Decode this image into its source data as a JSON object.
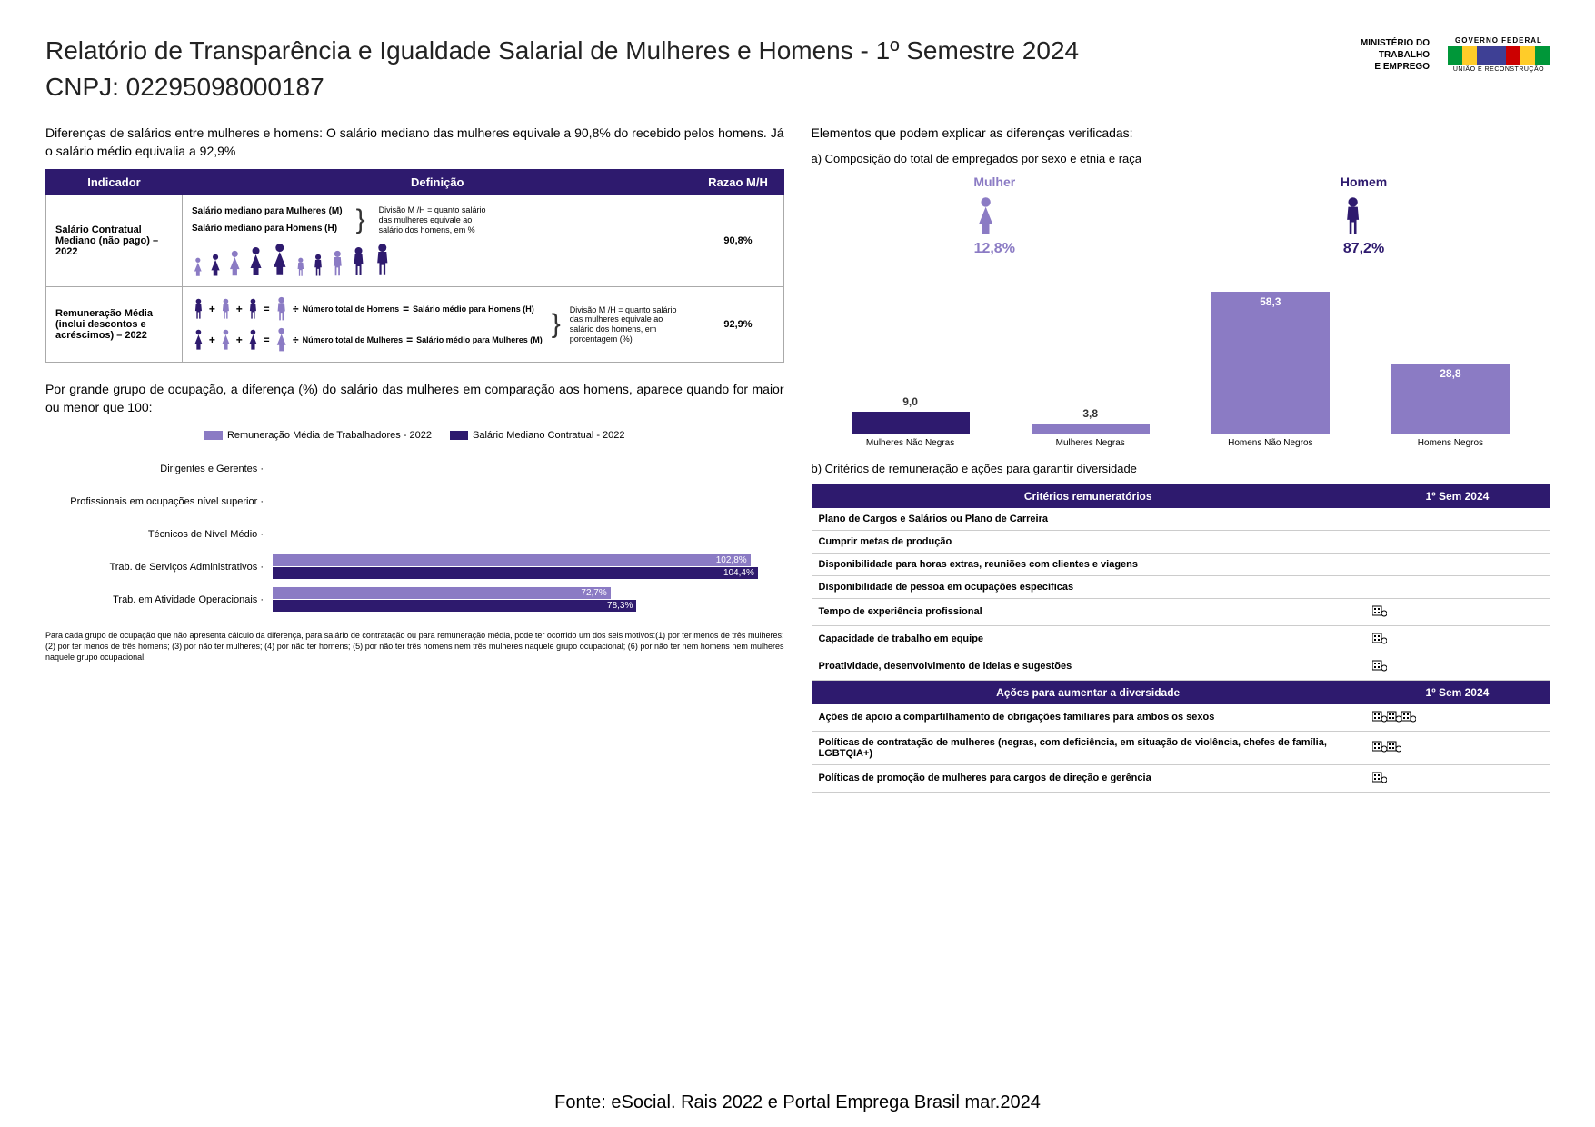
{
  "colors": {
    "darkPurple": "#2e1a6e",
    "lightPurple": "#8b7bc4",
    "text": "#000000",
    "green": "#009739",
    "yellow": "#ffcc29",
    "blue": "#3e4095",
    "red": "#cc0000"
  },
  "header": {
    "title": "Relatório de Transparência e Igualdade Salarial de Mulheres e Homens - 1º Semestre 2024",
    "cnpj": "CNPJ: 02295098000187",
    "ministry_line1": "MINISTÉRIO DO",
    "ministry_line2": "TRABALHO",
    "ministry_line3": "E EMPREGO",
    "brasil_top": "GOVERNO FEDERAL",
    "brasil_bottom": "UNIÃO E RECONSTRUÇÃO"
  },
  "left": {
    "intro": "Diferenças de salários entre mulheres e homens: O salário mediano das mulheres equivale a 90,8% do recebido pelos homens. Já o salário médio equivalia a 92,9%",
    "table_headers": [
      "Indicador",
      "Definição",
      "Razao M/H"
    ],
    "rows": [
      {
        "indicator": "Salário Contratual Mediano (não pago) – 2022",
        "def_line1": "Salário mediano para Mulheres (M)",
        "def_line2": "Salário mediano para Homens (H)",
        "def_note": "Divisão M /H = quanto salário das mulheres equivale ao salário dos homens, em %",
        "ratio": "90,8%"
      },
      {
        "indicator": "Remuneração Média (inclui descontos e acréscimos) – 2022",
        "def_line_a": "Número total de Homens",
        "def_line_b": "Salário médio para Homens (H)",
        "def_line_c": "Número total de Mulheres",
        "def_line_d": "Salário médio para Mulheres (M)",
        "def_note": "Divisão M /H = quanto salário das mulheres equivale ao salário dos homens, em porcentagem (%)",
        "ratio": "92,9%"
      }
    ],
    "hbar_intro": "Por grande grupo de ocupação, a diferença (%) do salário das mulheres em comparação aos homens, aparece quando for maior ou menor que 100:",
    "hbar_legend": [
      {
        "label": "Remuneração Média de Trabalhadores - 2022",
        "color": "#8b7bc4"
      },
      {
        "label": "Salário Mediano Contratual - 2022",
        "color": "#2e1a6e"
      }
    ],
    "hbar_categories": [
      {
        "label": "Dirigentes e Gerentes",
        "vals": [
          null,
          null
        ]
      },
      {
        "label": "Profissionais em ocupações nível superior",
        "vals": [
          null,
          null
        ]
      },
      {
        "label": "Técnicos de Nível Médio",
        "vals": [
          null,
          null
        ]
      },
      {
        "label": "Trab. de Serviços Administrativos",
        "vals": [
          102.8,
          104.4
        ],
        "labels": [
          "102,8%",
          "104,4%"
        ]
      },
      {
        "label": "Trab. em Atividade Operacionais",
        "vals": [
          72.7,
          78.3
        ],
        "labels": [
          "72,7%",
          "78,3%"
        ]
      }
    ],
    "hbar_max": 110,
    "footnote": "Para cada grupo de ocupação que não apresenta cálculo da diferença, para salário de contratação ou para remuneração média, pode ter ocorrido um dos seis motivos:(1) por ter menos de três mulheres; (2) por ter menos de três homens; (3) por não ter mulheres; (4) por não ter homens; (5) por não ter três homens nem três mulheres naquele grupo ocupacional; (6) por não ter nem homens nem mulheres naquele grupo ocupacional."
  },
  "right": {
    "intro": "Elementos que podem explicar as diferenças verificadas:",
    "section_a": "a) Composição do total de empregados por sexo e etnia e raça",
    "gender": [
      {
        "label": "Mulher",
        "pct": "12,8%",
        "color": "#8b7bc4"
      },
      {
        "label": "Homem",
        "pct": "87,2%",
        "color": "#2e1a6e"
      }
    ],
    "vbar": {
      "max": 60,
      "bars": [
        {
          "cat": "Mulheres Não Negras",
          "val": 9.0,
          "label": "9,0",
          "color": "#2e1a6e"
        },
        {
          "cat": "Mulheres Negras",
          "val": 3.8,
          "label": "3,8",
          "color": "#8b7bc4"
        },
        {
          "cat": "Homens Não Negros",
          "val": 58.3,
          "label": "58,3",
          "color": "#8b7bc4"
        },
        {
          "cat": "Homens Negros",
          "val": 28.8,
          "label": "28,8",
          "color": "#8b7bc4"
        }
      ]
    },
    "section_b": "b) Critérios de remuneração e ações para garantir diversidade",
    "crit_header1": "Critérios remuneratórios",
    "crit_header2": "1º Sem 2024",
    "criteria": [
      {
        "label": "Plano de Cargos e Salários ou Plano de Carreira",
        "icons": 0
      },
      {
        "label": "Cumprir metas de produção",
        "icons": 0
      },
      {
        "label": "Disponibilidade para horas extras, reuniões com clientes e viagens",
        "icons": 0
      },
      {
        "label": "Disponibilidade de pessoa em ocupações específicas",
        "icons": 0
      },
      {
        "label": "Tempo de experiência profissional",
        "icons": 1
      },
      {
        "label": "Capacidade de trabalho em equipe",
        "icons": 1
      },
      {
        "label": "Proatividade, desenvolvimento de ideias e sugestões",
        "icons": 1
      }
    ],
    "div_header1": "Ações para aumentar a diversidade",
    "div_header2": "1º Sem 2024",
    "diversity": [
      {
        "label": "Ações de apoio a compartilhamento de obrigações familiares para ambos os sexos",
        "icons": 3
      },
      {
        "label": "Políticas de contratação de mulheres (negras, com deficiência, em situação de violência, chefes de família, LGBTQIA+)",
        "icons": 2
      },
      {
        "label": "Políticas de promoção de mulheres para cargos de direção e gerência",
        "icons": 1
      }
    ]
  },
  "source": "Fonte: eSocial. Rais 2022 e Portal Emprega Brasil mar.2024"
}
